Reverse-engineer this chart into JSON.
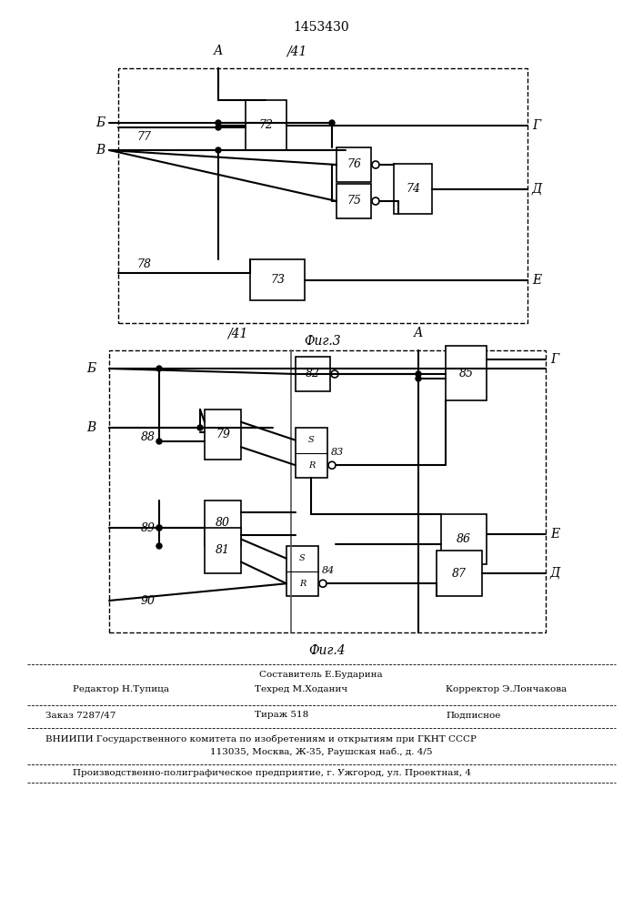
{
  "title": "1453430",
  "fig3_label": "Фиг.3",
  "fig4_label": "Фиг.4",
  "footer_line1_center": "Составитель Е.Бударина",
  "footer_line2_left": "Редактор Н.Тупица",
  "footer_line2_center": "Техред М.Ходанич",
  "footer_line2_right": "Корректор Э.Лончакова",
  "footer_line3_left": "Заказ 7287/47",
  "footer_line3_center": "Тираж 518",
  "footer_line3_right": "Подписное",
  "footer_line4": "ВНИИПИ Государственного комитета по изобретениям и открытиям при ГКНТ СССР",
  "footer_line5": "113035, Москва, Ж-35, Раушская наб., д. 4/5",
  "footer_line6": "Производственно-полиграфическое предприятие, г. Ужгород, ул. Проектная, 4",
  "bg_color": "#e8e8e8",
  "line_color": "#000000",
  "box_color": "#ffffff"
}
